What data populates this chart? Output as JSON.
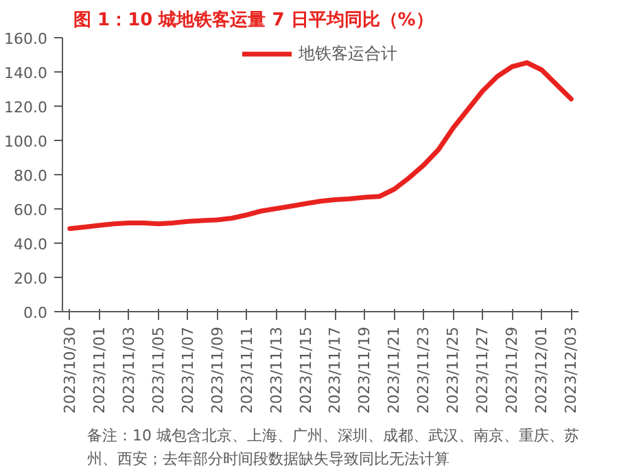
{
  "chart_data": {
    "type": "line",
    "title": "图 1：10 城地铁客运量 7 日平均同比（%）",
    "categories": [
      "2023/10/30",
      null,
      "2023/11/01",
      null,
      "2023/11/03",
      null,
      "2023/11/05",
      null,
      "2023/11/07",
      null,
      "2023/11/09",
      null,
      "2023/11/11",
      null,
      "2023/11/13",
      null,
      "2023/11/15",
      null,
      "2023/11/17",
      null,
      "2023/11/19",
      null,
      "2023/11/21",
      null,
      "2023/11/23",
      null,
      "2023/11/25",
      null,
      "2023/11/27",
      null,
      "2023/11/29",
      null,
      "2023/12/01",
      null,
      "2023/12/03"
    ],
    "series": [
      {
        "name": "地铁客运合计",
        "color": "#e8231f",
        "values": [
          48.5,
          49.4,
          50.4,
          51.3,
          51.8,
          51.8,
          51.3,
          51.8,
          52.7,
          53.2,
          53.6,
          54.6,
          56.5,
          58.8,
          60.2,
          61.6,
          63.1,
          64.5,
          65.4,
          65.9,
          66.8,
          67.3,
          71.5,
          78.1,
          85.6,
          94.6,
          107.3,
          118.1,
          128.9,
          137.4,
          143.1,
          145.4,
          141.2,
          132.7,
          124.2
        ]
      }
    ],
    "ylim": [
      0,
      160
    ],
    "yticks": [
      {
        "value": 0,
        "label": "0.0"
      },
      {
        "value": 20,
        "label": "20.0"
      },
      {
        "value": 40,
        "label": "40.0"
      },
      {
        "value": 60,
        "label": "60.0"
      },
      {
        "value": 80,
        "label": "80.0"
      },
      {
        "value": 100,
        "label": "100.0"
      },
      {
        "value": 120,
        "label": "120.0"
      },
      {
        "value": 140,
        "label": "140.0"
      },
      {
        "value": 160,
        "label": "160.0"
      }
    ],
    "legend": "top",
    "annotations": [
      "备注：10 城包含北京、上海、广州、深圳、成都、武汉、南京、重庆、苏州、西安；去年部分时间段数据缺失导致同比无法计算"
    ]
  }
}
